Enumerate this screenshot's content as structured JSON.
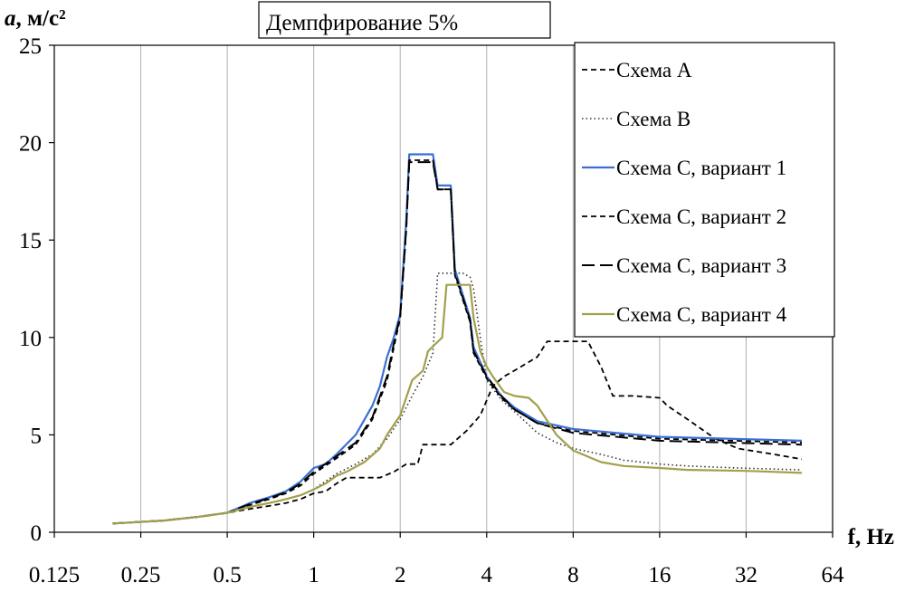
{
  "chart_data": {
    "type": "line",
    "title": "Демпфирование 5%",
    "ylabel_symbol": "a",
    "ylabel_unit": ", м/с²",
    "xlabel": "f, Hz",
    "x_scale": "log2",
    "xlim": [
      0.125,
      64
    ],
    "ylim": [
      0,
      25
    ],
    "x_ticks": [
      0.125,
      0.25,
      0.5,
      1,
      2,
      4,
      8,
      16,
      32,
      64
    ],
    "x_tick_labels": [
      "0.125",
      "0.25",
      "0.5",
      "1",
      "2",
      "4",
      "8",
      "16",
      "32",
      "64"
    ],
    "y_ticks": [
      0,
      5,
      10,
      15,
      20,
      25
    ],
    "y_tick_labels": [
      "0",
      "5",
      "10",
      "15",
      "20",
      "25"
    ],
    "grid": "vertical",
    "legend_position": "top-right",
    "series": [
      {
        "name": "Схема A",
        "color": "#000000",
        "dash": "6,4",
        "width": 1.8,
        "x": [
          0.2,
          0.3,
          0.4,
          0.5,
          0.6,
          0.7,
          0.8,
          0.9,
          1.0,
          1.1,
          1.2,
          1.3,
          1.5,
          1.7,
          1.9,
          2.1,
          2.3,
          2.4,
          3.0,
          3.4,
          3.8,
          4.2,
          4.6,
          5.0,
          6.0,
          6.5,
          9.0,
          10.0,
          11.0,
          13.0,
          16.0,
          17.0,
          20.0,
          25.0,
          30.0,
          40.0,
          50.0
        ],
        "y": [
          0.45,
          0.6,
          0.8,
          1.0,
          1.2,
          1.35,
          1.5,
          1.7,
          2.0,
          2.1,
          2.5,
          2.8,
          2.8,
          2.8,
          3.1,
          3.5,
          3.5,
          4.5,
          4.5,
          5.2,
          6.0,
          7.5,
          8.0,
          8.3,
          9.0,
          9.8,
          9.8,
          8.5,
          7.0,
          7.0,
          6.9,
          6.5,
          5.8,
          4.8,
          4.3,
          4.0,
          3.75
        ]
      },
      {
        "name": "Схема B",
        "color": "#333333",
        "dash": "1.5,3",
        "width": 1.6,
        "x": [
          0.2,
          0.3,
          0.4,
          0.5,
          0.6,
          0.7,
          0.8,
          0.9,
          1.0,
          1.2,
          1.4,
          1.6,
          1.8,
          2.0,
          2.2,
          2.4,
          2.6,
          2.7,
          3.3,
          3.5,
          3.6,
          3.8,
          4.0,
          4.5,
          5.0,
          6.0,
          7.0,
          8.0,
          10.0,
          12.0,
          16.0,
          20.0,
          30.0,
          50.0
        ],
        "y": [
          0.45,
          0.6,
          0.8,
          1.0,
          1.3,
          1.5,
          1.7,
          1.9,
          2.2,
          3.0,
          3.5,
          4.0,
          4.8,
          5.8,
          7.0,
          8.0,
          9.2,
          13.3,
          13.3,
          13.1,
          12.5,
          10.0,
          7.8,
          6.8,
          6.2,
          5.1,
          4.6,
          4.3,
          4.0,
          3.7,
          3.5,
          3.4,
          3.3,
          3.2
        ]
      },
      {
        "name": "Схема C, вариант 1",
        "color": "#3b6fd4",
        "dash": "",
        "width": 2.2,
        "x": [
          0.2,
          0.3,
          0.4,
          0.5,
          0.6,
          0.7,
          0.8,
          0.9,
          1.0,
          1.1,
          1.2,
          1.4,
          1.6,
          1.7,
          1.8,
          1.9,
          2.0,
          2.1,
          2.15,
          2.6,
          2.7,
          3.0,
          3.1,
          3.5,
          3.6,
          4.0,
          4.5,
          5.0,
          6.0,
          8.0,
          16.0,
          50.0
        ],
        "y": [
          0.45,
          0.6,
          0.8,
          1.0,
          1.5,
          1.8,
          2.1,
          2.6,
          3.3,
          3.5,
          4.0,
          5.0,
          6.5,
          7.5,
          9.0,
          10.0,
          11.2,
          16.0,
          19.4,
          19.4,
          17.8,
          17.8,
          13.5,
          11.0,
          9.5,
          8.0,
          7.0,
          6.4,
          5.7,
          5.3,
          4.9,
          4.7
        ]
      },
      {
        "name": "Схема C, вариант 2",
        "color": "#000000",
        "dash": "6,4",
        "width": 1.8,
        "x": [
          0.2,
          0.3,
          0.4,
          0.5,
          0.6,
          0.7,
          0.8,
          0.9,
          1.0,
          1.2,
          1.4,
          1.6,
          1.8,
          1.9,
          2.0,
          2.1,
          2.15,
          2.6,
          2.7,
          3.0,
          3.1,
          3.5,
          3.6,
          4.0,
          4.5,
          5.0,
          6.0,
          8.0,
          16.0,
          50.0
        ],
        "y": [
          0.45,
          0.6,
          0.8,
          1.0,
          1.4,
          1.7,
          2.0,
          2.4,
          3.0,
          3.8,
          4.5,
          5.8,
          7.8,
          9.5,
          11.0,
          15.5,
          19.1,
          19.1,
          17.6,
          17.6,
          13.2,
          10.8,
          9.2,
          7.9,
          6.9,
          6.3,
          5.6,
          5.2,
          4.8,
          4.6
        ]
      },
      {
        "name": "Схема C, вариант 3",
        "color": "#000000",
        "dash": "14,6",
        "width": 2.0,
        "x": [
          0.2,
          0.3,
          0.4,
          0.5,
          0.6,
          0.7,
          0.8,
          0.9,
          1.0,
          1.2,
          1.4,
          1.6,
          1.8,
          1.9,
          2.0,
          2.1,
          2.15,
          2.6,
          2.7,
          3.0,
          3.1,
          3.5,
          3.6,
          4.0,
          4.5,
          5.0,
          6.0,
          8.0,
          16.0,
          50.0
        ],
        "y": [
          0.45,
          0.6,
          0.8,
          1.0,
          1.45,
          1.75,
          2.05,
          2.5,
          3.1,
          3.9,
          4.6,
          5.9,
          8.0,
          9.7,
          11.1,
          15.6,
          19.0,
          19.0,
          17.6,
          17.6,
          13.3,
          10.9,
          9.3,
          8.0,
          7.0,
          6.3,
          5.6,
          5.1,
          4.7,
          4.5
        ]
      },
      {
        "name": "Схема C, вариант 4",
        "color": "#a3a04a",
        "dash": "",
        "width": 2.2,
        "x": [
          0.2,
          0.3,
          0.4,
          0.5,
          0.6,
          0.7,
          0.8,
          0.9,
          1.0,
          1.1,
          1.2,
          1.3,
          1.5,
          1.7,
          1.8,
          2.0,
          2.2,
          2.4,
          2.5,
          2.8,
          2.9,
          3.5,
          3.6,
          3.8,
          4.0,
          4.2,
          4.6,
          5.0,
          5.6,
          6.0,
          7.0,
          8.0,
          10.0,
          12.0,
          16.0,
          20.0,
          32.0,
          50.0
        ],
        "y": [
          0.45,
          0.6,
          0.8,
          1.0,
          1.3,
          1.5,
          1.7,
          1.9,
          2.2,
          2.5,
          2.9,
          3.1,
          3.6,
          4.3,
          5.0,
          6.0,
          7.8,
          8.3,
          9.3,
          10.0,
          12.7,
          12.7,
          11.0,
          9.3,
          8.5,
          8.0,
          7.2,
          7.0,
          6.9,
          6.5,
          5.0,
          4.2,
          3.6,
          3.4,
          3.3,
          3.2,
          3.15,
          3.05
        ]
      }
    ]
  }
}
